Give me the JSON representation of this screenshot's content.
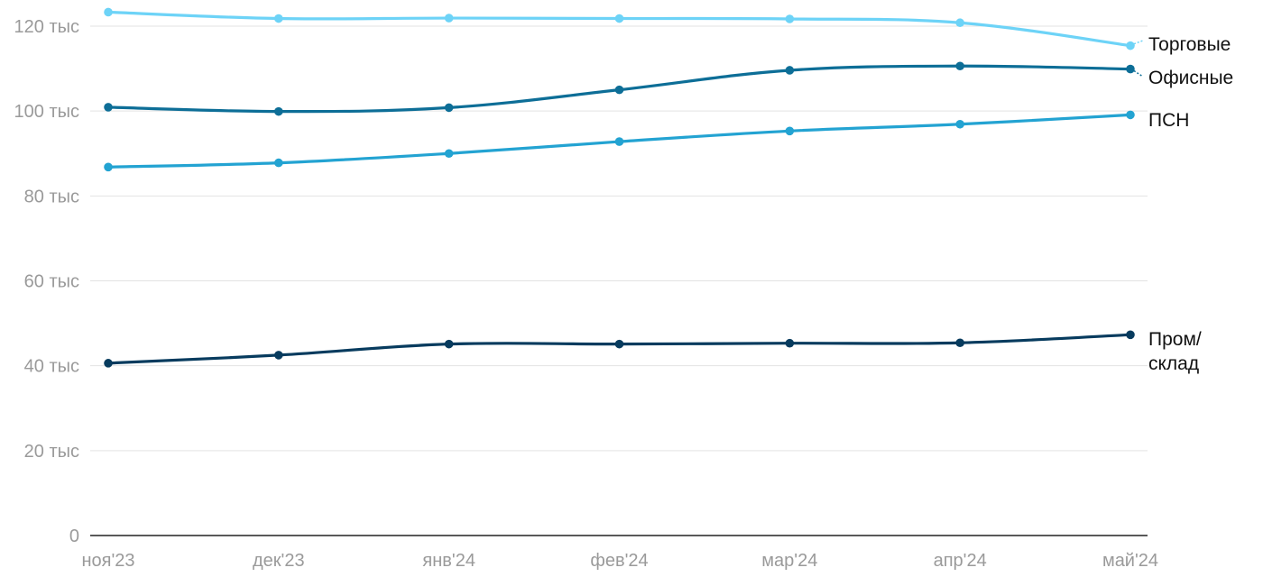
{
  "chart_data": {
    "type": "line",
    "title": "",
    "xlabel": "",
    "ylabel": "",
    "categories": [
      "ноя'23",
      "дек'23",
      "янв'24",
      "фев'24",
      "мар'24",
      "апр'24",
      "май'24"
    ],
    "ylim": [
      0,
      125000
    ],
    "y_ticks": [
      0,
      20000,
      40000,
      60000,
      80000,
      100000,
      120000
    ],
    "y_tick_labels": [
      "0",
      "20 тыс",
      "40 тыс",
      "60 тыс",
      "80 тыс",
      "100 тыс",
      "120 тыс"
    ],
    "grid": true,
    "legend": "direct labels at right end of lines",
    "series": [
      {
        "name": "Торговые",
        "color": "#6dd3f7",
        "values": [
          123300,
          121800,
          121900,
          121800,
          121700,
          120800,
          115400
        ]
      },
      {
        "name": "Офисные",
        "color": "#0d6e97",
        "values": [
          100900,
          99900,
          100800,
          105000,
          109600,
          110600,
          109900
        ]
      },
      {
        "name": "ПСН",
        "color": "#23a3d2",
        "values": [
          86800,
          87800,
          90000,
          92800,
          95300,
          96900,
          99100
        ]
      },
      {
        "name": "Пром/\nсклад",
        "color": "#073b5e",
        "values": [
          40600,
          42500,
          45100,
          45100,
          45300,
          45400,
          47300
        ]
      }
    ]
  }
}
